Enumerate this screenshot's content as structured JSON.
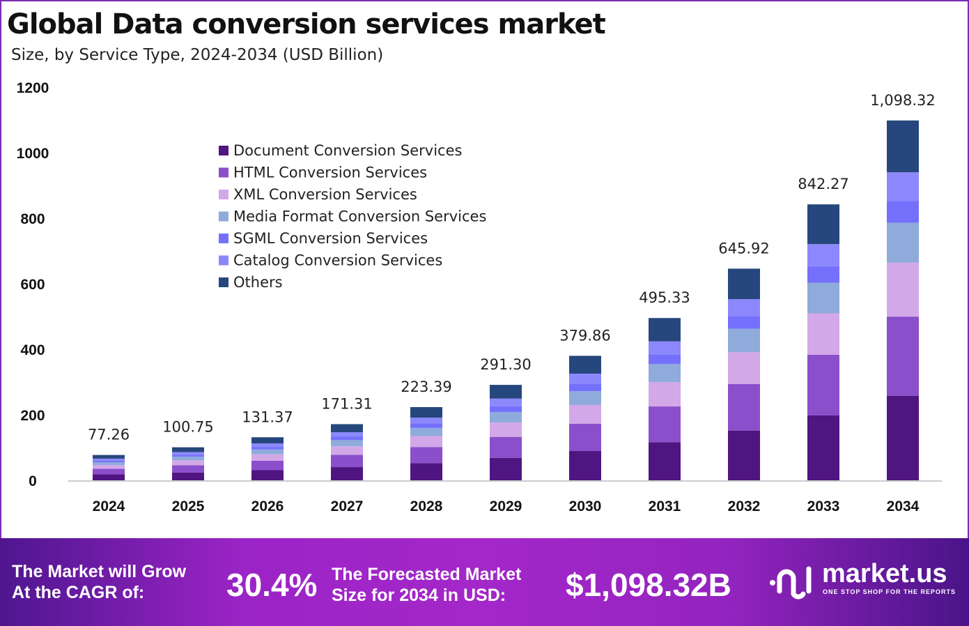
{
  "chart_data": {
    "type": "bar",
    "stacked": true,
    "title": "Global Data conversion services market",
    "subtitle": "Size, by Service Type, 2024-2034 (USD Billion)",
    "xlabel": "",
    "ylabel": "",
    "ylim": [
      0,
      1200
    ],
    "yticks": [
      "0",
      "200",
      "400",
      "600",
      "800",
      "1000",
      "1200"
    ],
    "grid": false,
    "legend_position": "top-left",
    "categories": [
      "2024",
      "2025",
      "2026",
      "2027",
      "2028",
      "2029",
      "2030",
      "2031",
      "2032",
      "2033",
      "2034"
    ],
    "totals": [
      "77.26",
      "100.75",
      "131.37",
      "171.31",
      "223.39",
      "291.30",
      "379.86",
      "495.33",
      "645.92",
      "842.27",
      "1,098.32"
    ],
    "series": [
      {
        "name": "Document Conversion Services",
        "color": "#4f1580",
        "values": [
          18.2,
          23.7,
          30.9,
          40.3,
          52.5,
          68.5,
          89.3,
          116.4,
          151.8,
          197.9,
          258.1
        ]
      },
      {
        "name": "HTML Conversion Services",
        "color": "#8b4fcb",
        "values": [
          17.0,
          22.2,
          28.9,
          37.7,
          49.1,
          64.1,
          83.6,
          109.0,
          142.1,
          185.3,
          241.6
        ]
      },
      {
        "name": "XML Conversion Services",
        "color": "#d3a8e8",
        "values": [
          11.6,
          15.1,
          19.7,
          25.7,
          33.5,
          43.7,
          57.0,
          74.3,
          96.9,
          126.3,
          164.7
        ]
      },
      {
        "name": "Media Format Conversion Services",
        "color": "#8eabdb",
        "values": [
          8.6,
          11.2,
          14.6,
          19.0,
          24.8,
          32.3,
          42.2,
          55.0,
          71.7,
          93.5,
          121.9
        ]
      },
      {
        "name": "SGML Conversion Services",
        "color": "#7470fc",
        "values": [
          4.6,
          6.0,
          7.9,
          10.3,
          13.4,
          17.5,
          22.8,
          29.7,
          38.8,
          50.5,
          65.9
        ]
      },
      {
        "name": "Catalog Conversion Services",
        "color": "#8c88fc",
        "values": [
          6.2,
          8.1,
          10.5,
          13.7,
          17.9,
          23.3,
          30.4,
          39.6,
          51.7,
          67.4,
          87.9
        ]
      },
      {
        "name": "Others",
        "color": "#26477d",
        "values": [
          11.1,
          14.5,
          18.9,
          24.7,
          32.2,
          41.9,
          54.7,
          71.3,
          93.0,
          121.3,
          158.2
        ]
      }
    ]
  },
  "footer": {
    "cagr_label_1": "The Market will Grow",
    "cagr_label_2": "At the CAGR of:",
    "cagr_value": "30.4%",
    "forecast_label_1": "The Forecasted Market",
    "forecast_label_2": "Size for 2034 in USD:",
    "forecast_value": "$1,098.32B",
    "logo_text": "market.us",
    "logo_tagline": "ONE STOP SHOP FOR THE REPORTS"
  }
}
